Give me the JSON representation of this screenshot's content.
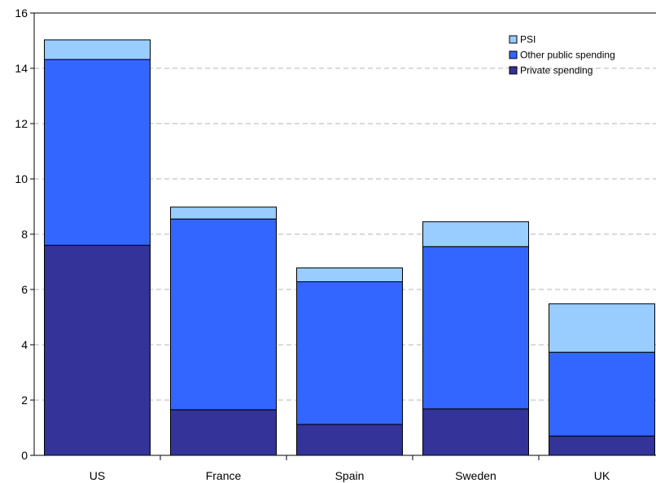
{
  "chart_data": {
    "type": "bar",
    "stacked": true,
    "categories": [
      "US",
      "France",
      "Spain",
      "Sweden",
      "UK"
    ],
    "series": [
      {
        "name": "Private spending",
        "values": [
          7.6,
          1.65,
          1.12,
          1.68,
          0.7
        ],
        "color": "#333399"
      },
      {
        "name": "Other public spending",
        "values": [
          6.72,
          6.9,
          5.16,
          5.87,
          3.03
        ],
        "color": "#3366ff"
      },
      {
        "name": "PSI",
        "values": [
          0.71,
          0.43,
          0.5,
          0.9,
          1.75
        ],
        "color": "#99ccff"
      }
    ],
    "legend_order": [
      "PSI",
      "Other public spending",
      "Private spending"
    ],
    "legend_position": "top-right",
    "ylim": [
      0,
      16
    ],
    "yticks": [
      "0",
      "2",
      "4",
      "6",
      "8",
      "10",
      "12",
      "14",
      "16"
    ],
    "grid": "horizontal dashed",
    "title": "",
    "xlabel": "",
    "ylabel": ""
  }
}
